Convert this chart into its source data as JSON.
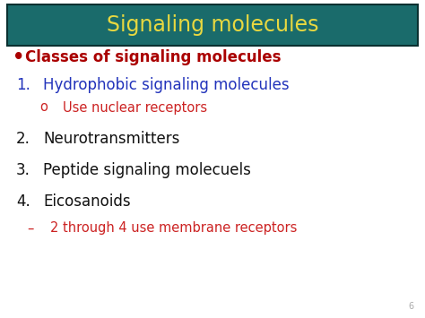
{
  "title": "Signaling molecules",
  "title_color": "#e8d840",
  "title_bg_top": "#1a6b6b",
  "title_bg_bottom": "#0d3d3d",
  "title_fontsize": 17,
  "background_color": "#ffffff",
  "bullet_color": "#aa0000",
  "bullet_text": "Classes of signaling molecules",
  "bullet_fontsize": 12,
  "items": [
    {
      "num": "1.",
      "text": "Hydrophobic signaling molecules",
      "color": "#2233bb",
      "fontsize": 12,
      "type": "main"
    },
    {
      "num": "o",
      "text": "Use nuclear receptors",
      "color": "#cc2222",
      "fontsize": 10.5,
      "type": "sub"
    },
    {
      "num": "2.",
      "text": "Neurotransmitters",
      "color": "#111111",
      "fontsize": 12,
      "type": "main"
    },
    {
      "num": "3.",
      "text": "Peptide signaling molecuels",
      "color": "#111111",
      "fontsize": 12,
      "type": "main"
    },
    {
      "num": "4.",
      "text": "Eicosanoids",
      "color": "#111111",
      "fontsize": 12,
      "type": "main"
    },
    {
      "num": "–",
      "text": "2 through 4 use membrane receptors",
      "color": "#cc2222",
      "fontsize": 10.5,
      "type": "sub2"
    }
  ],
  "page_number": "6",
  "page_num_color": "#aaaaaa",
  "page_num_fontsize": 7
}
